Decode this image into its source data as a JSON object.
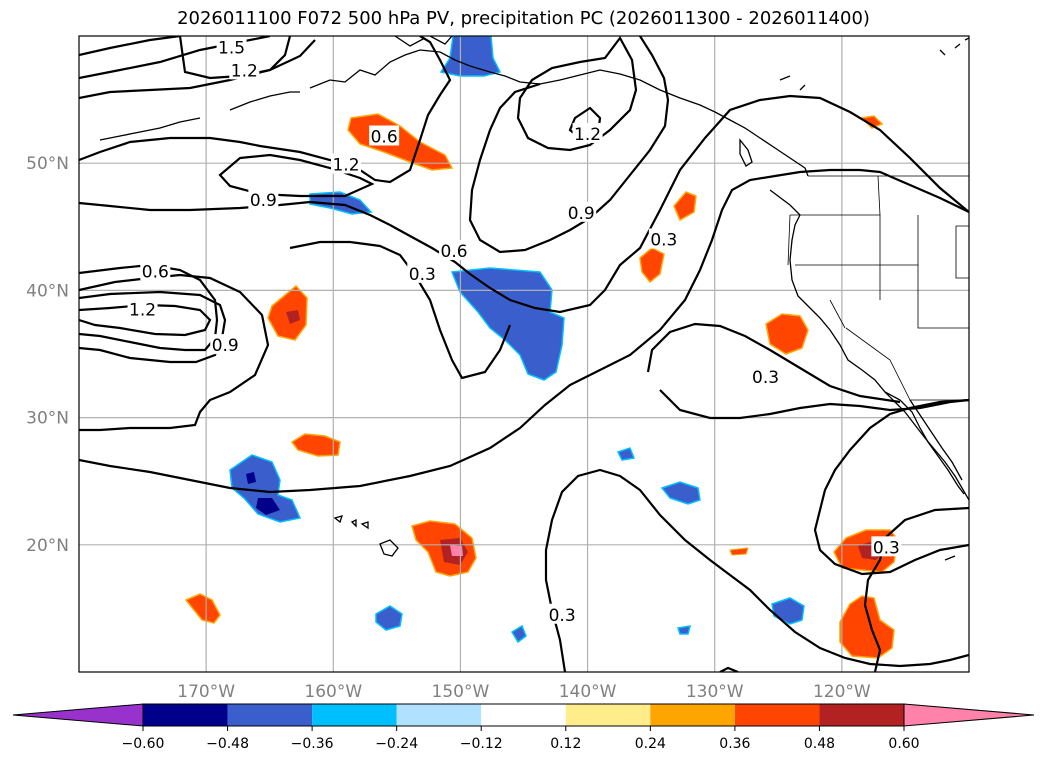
{
  "title": "2026011100 F072 500 hPa PV, precipitation PC (2026011300 - 2026011400)",
  "map": {
    "lon_range": [
      -180,
      -110
    ],
    "lat_range": [
      10,
      60
    ],
    "lon_ticks": [
      {
        "lon": -170,
        "label": "170°W"
      },
      {
        "lon": -160,
        "label": "160°W"
      },
      {
        "lon": -150,
        "label": "150°W"
      },
      {
        "lon": -140,
        "label": "140°W"
      },
      {
        "lon": -130,
        "label": "130°W"
      },
      {
        "lon": -120,
        "label": "120°W"
      }
    ],
    "lat_ticks": [
      {
        "lat": 20,
        "label": "20°N"
      },
      {
        "lat": 30,
        "label": "30°N"
      },
      {
        "lat": 40,
        "label": "40°N"
      },
      {
        "lat": 50,
        "label": "50°N"
      }
    ],
    "grid": true
  },
  "contour_labels": [
    {
      "text": "1.5",
      "lon": -168,
      "lat": 59.1
    },
    {
      "text": "1.2",
      "lon": -167,
      "lat": 57.3
    },
    {
      "text": "0.6",
      "lon": -156,
      "lat": 52.1
    },
    {
      "text": "1.2",
      "lon": -159,
      "lat": 49.9
    },
    {
      "text": "0.9",
      "lon": -165.5,
      "lat": 47.1
    },
    {
      "text": "0.6",
      "lon": -174,
      "lat": 41.5
    },
    {
      "text": "1.2",
      "lon": -175,
      "lat": 38.5
    },
    {
      "text": "0.9",
      "lon": -168.5,
      "lat": 35.7
    },
    {
      "text": "0.6",
      "lon": -150.5,
      "lat": 43.1
    },
    {
      "text": "0.3",
      "lon": -153,
      "lat": 41.3
    },
    {
      "text": "1.2",
      "lon": -140,
      "lat": 52.3
    },
    {
      "text": "0.9",
      "lon": -140.5,
      "lat": 46.1
    },
    {
      "text": "0.3",
      "lon": -134,
      "lat": 44.0
    },
    {
      "text": "0.3",
      "lon": -126,
      "lat": 33.2
    },
    {
      "text": "0.3",
      "lon": -116.5,
      "lat": 19.8
    },
    {
      "text": "0.3",
      "lon": -142,
      "lat": 14.5
    }
  ],
  "colorbar": {
    "colors": [
      "#9932cc",
      "#00008b",
      "#3a5fcd",
      "#00bfff",
      "#b0e2ff",
      "#ffffff",
      "#ffec8b",
      "#ffa500",
      "#ff4500",
      "#b22222",
      "#ff82ab"
    ],
    "tick_labels": [
      "−0.60",
      "−0.48",
      "−0.36",
      "−0.24",
      "−0.12",
      "0.12",
      "0.24",
      "0.36",
      "0.48",
      "0.60"
    ]
  }
}
